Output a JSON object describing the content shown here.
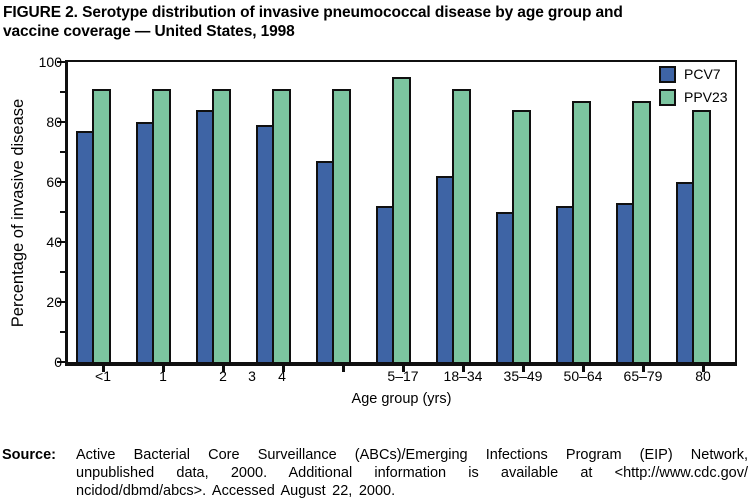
{
  "figure": {
    "title_line1": "FIGURE 2. Serotype distribution of invasive pneumococcal disease by age group and",
    "title_line2": "vaccine  coverage — United States, 1998"
  },
  "chart_data": {
    "type": "bar",
    "title": "FIGURE 2. Serotype distribution of invasive pneumococcal disease by age group and vaccine coverage — United States, 1998",
    "categories": [
      "<1",
      "1",
      "2",
      "3",
      "4",
      "5–17",
      "18–34",
      "35–49",
      "50–64",
      "65–79",
      "80"
    ],
    "series": [
      {
        "name": "PCV7",
        "color": "#3E64A5",
        "values": [
          77,
          80,
          84,
          79,
          67,
          52,
          62,
          50,
          52,
          53,
          60
        ]
      },
      {
        "name": "PPV23",
        "color": "#7CC5A0",
        "values": [
          91,
          91,
          91,
          91,
          91,
          95,
          91,
          84,
          87,
          87,
          84
        ]
      }
    ],
    "xlabel": "Age group (yrs)",
    "ylabel": "Percentage of invasive disease",
    "ylim": [
      0,
      100
    ],
    "yticks_major": [
      0,
      20,
      40,
      60,
      80,
      100
    ],
    "yticks_minor": [
      10,
      30,
      50,
      70,
      90
    ],
    "grid": false,
    "legend_position": "top-right-inside",
    "bar_outline_color": "#101010",
    "layout": {
      "first_tick_x": 35,
      "tick_step": 60,
      "label_dx": {
        "3": -31,
        "4": -61
      }
    }
  },
  "source": {
    "label": "Source:",
    "lines": [
      "Active Bacterial Core Surveillance (ABCs)/Emerging Infections Program (EIP) Network,",
      "unpublished data, 2000. Additional information is available at <http://www.cdc.gov/",
      "ncidod/dbmd/abcs>. Accessed August 22, 2000."
    ]
  }
}
